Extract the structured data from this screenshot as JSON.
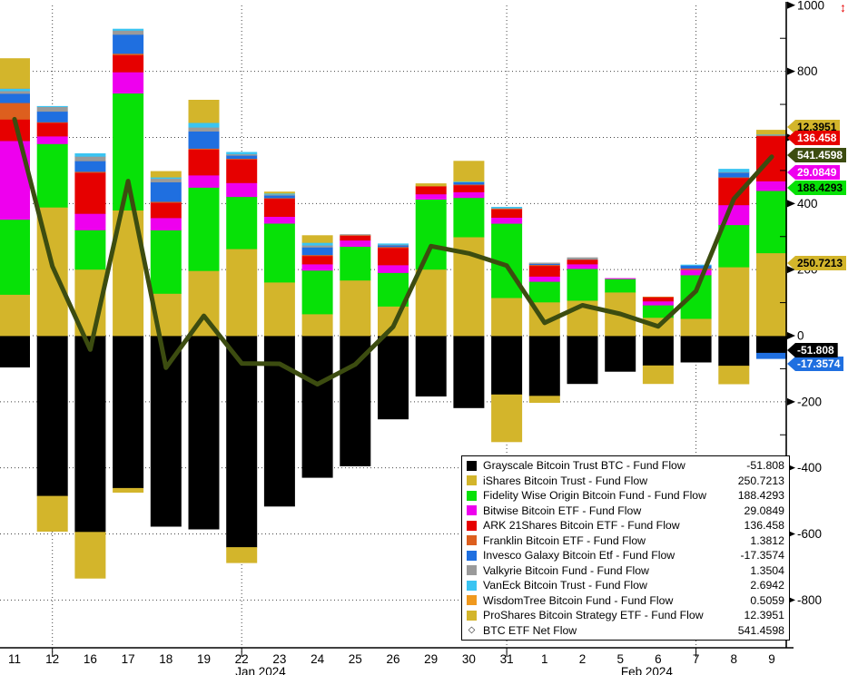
{
  "chart_data": {
    "type": "bar",
    "stacked": true,
    "title": "",
    "categories": [
      "11",
      "12",
      "16",
      "17",
      "18",
      "19",
      "22",
      "23",
      "24",
      "25",
      "26",
      "29",
      "30",
      "31",
      "1",
      "2",
      "5",
      "6",
      "7",
      "8",
      "9"
    ],
    "x_axis": {
      "group_labels": [
        {
          "text": "Jan 2024",
          "anchor_index": 6.5
        },
        {
          "text": "Feb 2024",
          "anchor_index": 16.7
        }
      ],
      "vertical_gridline_indices": [
        1,
        6,
        13,
        18
      ]
    },
    "y_axis": {
      "ticks": [
        1000,
        800,
        600,
        400,
        200,
        0,
        -200,
        -400,
        -600,
        -800
      ],
      "minor_step": 100,
      "ylim": [
        -945,
        1016
      ],
      "grid": "dotted"
    },
    "series": [
      {
        "id": "gbtc",
        "name": "Grayscale Bitcoin Trust BTC - Fund Flow",
        "color": "#000000",
        "values": [
          -95,
          -485,
          -594,
          -461,
          -577,
          -585,
          -640,
          -516,
          -429,
          -394,
          -252,
          -183,
          -218,
          -178,
          -182,
          -145,
          -108,
          -90,
          -80,
          -91,
          -51.808
        ]
      },
      {
        "id": "ibit",
        "name": "iShares Bitcoin Trust - Fund Flow",
        "color": "#d3b52b",
        "values": [
          125,
          389,
          201,
          380,
          128,
          197,
          263,
          162,
          66,
          168,
          89,
          201,
          299,
          115,
          102,
          107,
          132,
          55,
          52,
          208,
          250.7213
        ]
      },
      {
        "id": "fbtc",
        "name": "Fidelity Wise Origin Bitcoin Fund - Fund Flow",
        "color": "#07e107",
        "values": [
          227,
          192,
          119,
          354,
          192,
          252,
          158,
          178,
          132,
          102,
          102,
          212,
          119,
          225,
          62,
          96,
          40,
          38,
          132,
          128,
          188.4293
        ]
      },
      {
        "id": "bitb",
        "name": "Bitwise Bitcoin ETF - Fund Flow",
        "color": "#ee00ee",
        "values": [
          238,
          23,
          50,
          64,
          37,
          37,
          42,
          21,
          19,
          19,
          23,
          16,
          17,
          18,
          16,
          14,
          2,
          12,
          16,
          60,
          29.0849
        ]
      },
      {
        "id": "arkb",
        "name": "ARK 21Shares Bitcoin ETF - Fund Flow",
        "color": "#e60000",
        "values": [
          65,
          41,
          124,
          52,
          46,
          78,
          71,
          54,
          25,
          14,
          52,
          23,
          21,
          25,
          32,
          14,
          0,
          11,
          0,
          82,
          136.458
        ]
      },
      {
        "id": "ezbc",
        "name": "Franklin Bitcoin ETF - Fund Flow",
        "color": "#dd5f1e",
        "values": [
          50,
          2,
          3,
          4,
          3,
          3,
          2,
          2,
          3,
          2,
          3,
          2,
          2,
          2,
          3,
          0,
          0,
          2,
          4,
          2,
          1.3812
        ]
      },
      {
        "id": "btco",
        "name": "Invesco Galaxy Bitcoin Etf - Fund Flow",
        "color": "#1f6fe0",
        "values": [
          28,
          32,
          32,
          58,
          59,
          52,
          10,
          8,
          23,
          0,
          5,
          0,
          7,
          0,
          3,
          0,
          0,
          0,
          9,
          14,
          -17.3574
        ]
      },
      {
        "id": "brrr",
        "name": "Valkyrie Bitcoin Fund - Fund Flow",
        "color": "#9a9a9a",
        "values": [
          8,
          14,
          14,
          12,
          11,
          12,
          4,
          3,
          6,
          2,
          2,
          0,
          0,
          2,
          3,
          6,
          0,
          0,
          0,
          2,
          1.3504
        ]
      },
      {
        "id": "hodl",
        "name": "VanEck Bitcoin Trust - Fund Flow",
        "color": "#3ac4f2",
        "values": [
          8,
          2,
          9,
          5,
          4,
          14,
          6,
          3,
          8,
          0,
          3,
          0,
          2,
          3,
          0,
          0,
          0,
          0,
          2,
          9,
          2.6942
        ]
      },
      {
        "id": "btcw",
        "name": "WisdomTree Bitcoin Fund - Fund Flow",
        "color": "#f0991e",
        "values": [
          0.6,
          0,
          0,
          0,
          0,
          0,
          0,
          0,
          0,
          0,
          0,
          0,
          0,
          0,
          0,
          0,
          0,
          0,
          0,
          0,
          0.5059
        ]
      },
      {
        "id": "bito",
        "name": "ProShares Bitcoin Strategy ETF - Fund Flow",
        "color": "#d3b52b",
        "values": [
          90,
          -107,
          -140,
          -13,
          18,
          69,
          -47,
          5,
          22,
          0,
          0,
          7,
          62,
          -143,
          -20,
          0,
          0,
          -55,
          0,
          -55,
          12.3951
        ]
      }
    ],
    "net_line": {
      "name": "BTC ETF Net Flow",
      "color": "#3c4c10",
      "values": [
        655,
        210,
        -42,
        468,
        -97,
        60,
        -84,
        -85,
        -147,
        -87,
        27,
        271,
        249,
        212,
        39,
        92,
        66,
        28,
        135,
        414,
        541.4598
      ]
    }
  },
  "axis_tags": [
    {
      "text": "12.3951",
      "bg": "#d3b52b",
      "fg": "#000000",
      "y_value": 632,
      "z": 1
    },
    {
      "text": "136.458",
      "bg": "#e60000",
      "fg": "#ffffff",
      "y_value": 599,
      "z": 2
    },
    {
      "text": "541.4598",
      "bg": "#3c4c10",
      "fg": "#ffffff",
      "y_value": 546,
      "z": 3
    },
    {
      "text": "29.0849",
      "bg": "#ee00ee",
      "fg": "#ffffff",
      "y_value": 494,
      "z": 1
    },
    {
      "text": "188.4293",
      "bg": "#07e107",
      "fg": "#000000",
      "y_value": 448,
      "z": 2
    },
    {
      "text": "250.7213",
      "bg": "#d3b52b",
      "fg": "#000000",
      "y_value": 220,
      "z": 2
    },
    {
      "text": "-51.808",
      "bg": "#000000",
      "fg": "#ffffff",
      "y_value": -44,
      "z": 3
    },
    {
      "text": "-17.3574",
      "bg": "#1f6fe0",
      "fg": "#ffffff",
      "y_value": -85,
      "z": 1
    }
  ],
  "legend": {
    "entries": [
      {
        "label": "Grayscale Bitcoin Trust BTC - Fund Flow",
        "value": "-51.808",
        "color": "#000000",
        "marker": "square"
      },
      {
        "label": "iShares Bitcoin Trust - Fund Flow",
        "value": "250.7213",
        "color": "#d3b52b",
        "marker": "square"
      },
      {
        "label": "Fidelity Wise Origin Bitcoin Fund - Fund Flow",
        "value": "188.4293",
        "color": "#07e107",
        "marker": "square"
      },
      {
        "label": "Bitwise Bitcoin ETF - Fund Flow",
        "value": "29.0849",
        "color": "#ee00ee",
        "marker": "square"
      },
      {
        "label": "ARK 21Shares Bitcoin ETF - Fund Flow",
        "value": "136.458",
        "color": "#e60000",
        "marker": "square"
      },
      {
        "label": "Franklin Bitcoin ETF - Fund Flow",
        "value": "1.3812",
        "color": "#dd5f1e",
        "marker": "square"
      },
      {
        "label": "Invesco Galaxy Bitcoin Etf - Fund Flow",
        "value": "-17.3574",
        "color": "#1f6fe0",
        "marker": "square"
      },
      {
        "label": "Valkyrie Bitcoin Fund - Fund Flow",
        "value": "1.3504",
        "color": "#9a9a9a",
        "marker": "square"
      },
      {
        "label": "VanEck Bitcoin Trust - Fund Flow",
        "value": "2.6942",
        "color": "#3ac4f2",
        "marker": "square"
      },
      {
        "label": "WisdomTree Bitcoin Fund - Fund Flow",
        "value": "0.5059",
        "color": "#f0991e",
        "marker": "square"
      },
      {
        "label": "ProShares Bitcoin Strategy ETF - Fund Flow",
        "value": "12.3951",
        "color": "#d3b52b",
        "marker": "square"
      },
      {
        "label": "BTC ETF Net Flow",
        "value": "541.4598",
        "color": "#3c4c10",
        "marker": "diamond"
      }
    ]
  },
  "decorations": {
    "resize_glyph": "↕"
  }
}
